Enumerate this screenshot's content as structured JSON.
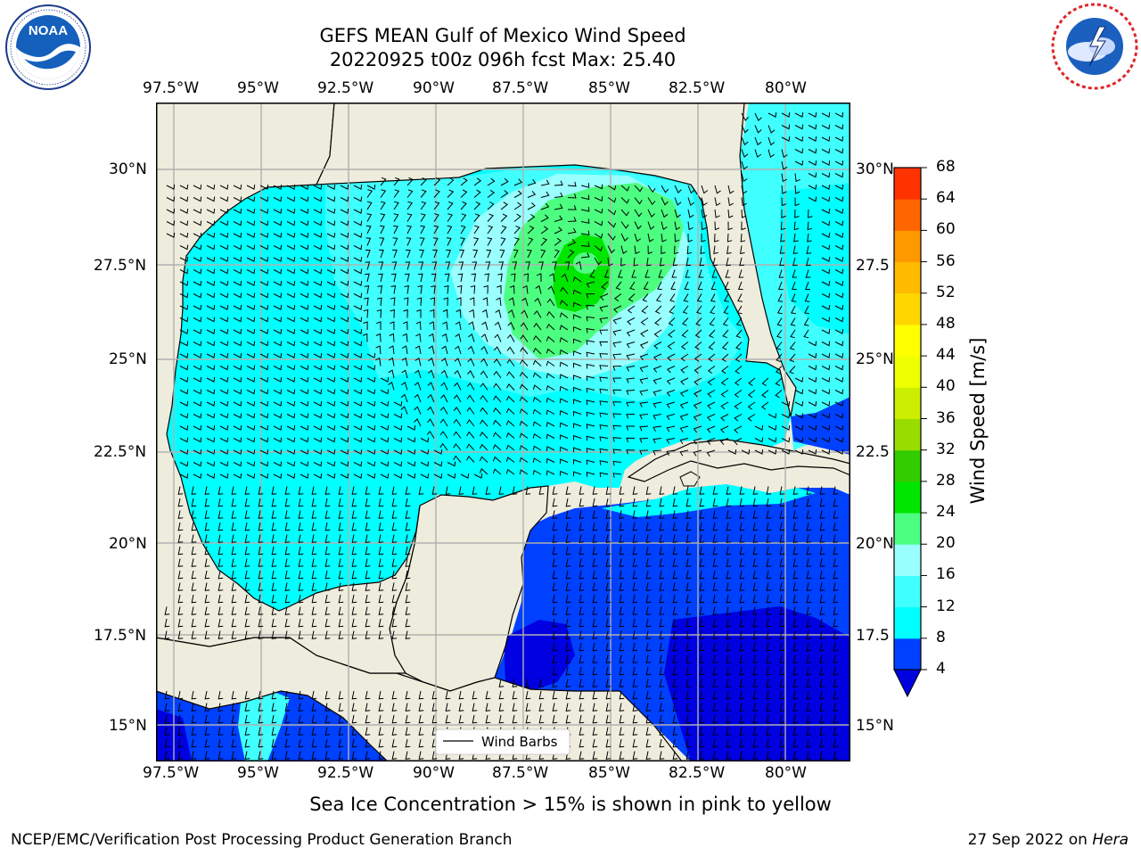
{
  "title": {
    "line1": "GEFS MEAN Gulf of Mexico Wind Speed",
    "line2": "20220925 t00z 096h fcst   Max: 25.40"
  },
  "logos": {
    "left": {
      "icon": "noaa-logo",
      "text": "NOAA",
      "ring_text": "NATIONAL OCEANIC AND ATMOSPHERIC ADMINISTRATION · U.S. DEPARTMENT OF COMMERCE"
    },
    "right": {
      "icon": "nws-logo",
      "ring_text": "NATIONAL WEATHER SERVICE"
    }
  },
  "map": {
    "lon_labels": [
      "97.5°W",
      "95°W",
      "92.5°W",
      "90°W",
      "87.5°W",
      "85°W",
      "82.5°W",
      "80°W"
    ],
    "lat_labels_left": [
      "30°N",
      "27.5°N",
      "25°N",
      "22.5°N",
      "20°N",
      "17.5°N",
      "15°N"
    ],
    "lat_labels_right": [
      "30°N",
      "27.5",
      "25°N",
      "22.5",
      "20°N",
      "17.5",
      "15°N"
    ],
    "lon_range": [
      -98,
      -78.2
    ],
    "lat_range": [
      14,
      31.6
    ],
    "land_color": "#eeecdc",
    "grid_color": "#b0b0b0",
    "legend": {
      "line_label": "Wind Barbs"
    }
  },
  "colorbar": {
    "title": "Wind Speed [m/s]",
    "levels": [
      "4",
      "8",
      "12",
      "16",
      "20",
      "24",
      "28",
      "32",
      "36",
      "40",
      "44",
      "48",
      "52",
      "56",
      "60",
      "64",
      "68"
    ],
    "colors": [
      "#0040ff",
      "#00ffff",
      "#40ffff",
      "#99ffff",
      "#4dff80",
      "#00e600",
      "#33cc00",
      "#99dd00",
      "#ccee00",
      "#eeff00",
      "#ffff00",
      "#ffd700",
      "#ffbb00",
      "#ff9900",
      "#ff6600",
      "#ff3300"
    ],
    "under_color": "#0000e0"
  },
  "caption": "Sea Ice Concentration > 15% is shown in pink to yellow",
  "footer": {
    "left": "NCEP/EMC/Verification Post Processing Product Generation Branch",
    "right_date": "27 Sep 2022 on ",
    "right_machine": "Hera"
  }
}
